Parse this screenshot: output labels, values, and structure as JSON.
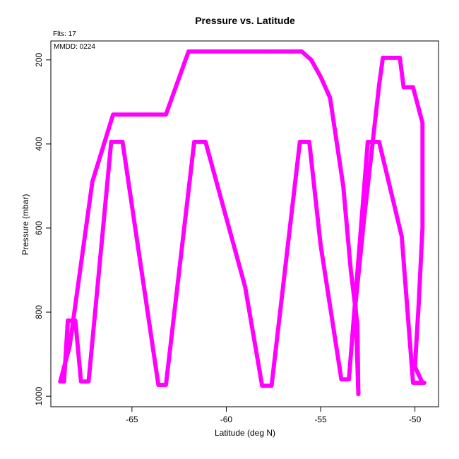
{
  "chart_data": {
    "type": "scatter",
    "title": "Pressure vs. Latitude",
    "xlabel": "Latitude (deg N)",
    "ylabel": "Pressure (mbar)",
    "annotations": {
      "flts": "Flts: 17",
      "mmdd": "MMDD: 0224"
    },
    "xlim": [
      -69.3,
      -48.75
    ],
    "ylim": [
      1025,
      155
    ],
    "y_inverted": true,
    "x_ticks": [
      -65,
      -60,
      -55,
      -50
    ],
    "x_tick_labels": [
      "-65",
      "-60",
      "-55",
      "-50"
    ],
    "y_ticks": [
      200,
      400,
      600,
      800,
      1000
    ],
    "y_tick_labels": [
      "200",
      "400",
      "600",
      "800",
      "1000"
    ],
    "grid": false,
    "marker_color": "#ff00ff",
    "series": [
      {
        "points": [
          [
            -68.8,
            965
          ],
          [
            -68.6,
            965
          ],
          [
            -68.4,
            820
          ],
          [
            -68.0,
            820
          ],
          [
            -67.7,
            965
          ],
          [
            -67.3,
            965
          ],
          [
            -66.1,
            395
          ],
          [
            -65.5,
            395
          ],
          [
            -63.6,
            973
          ],
          [
            -63.2,
            973
          ],
          [
            -61.7,
            395
          ],
          [
            -61.1,
            395
          ],
          [
            -59.0,
            740
          ],
          [
            -58.1,
            975
          ],
          [
            -57.6,
            975
          ],
          [
            -56.1,
            395
          ],
          [
            -55.6,
            395
          ],
          [
            -55.0,
            640
          ],
          [
            -53.9,
            960
          ],
          [
            -53.5,
            960
          ],
          [
            -52.5,
            395
          ],
          [
            -51.9,
            395
          ],
          [
            -50.7,
            620
          ],
          [
            -50.1,
            968
          ],
          [
            -49.5,
            968
          ]
        ]
      },
      {
        "points": [
          [
            -68.8,
            965
          ],
          [
            -68.3,
            880
          ],
          [
            -67.1,
            490
          ],
          [
            -66.0,
            330
          ],
          [
            -63.2,
            330
          ],
          [
            -62.0,
            180
          ],
          [
            -56.0,
            180
          ],
          [
            -55.5,
            200
          ],
          [
            -55.0,
            240
          ],
          [
            -54.5,
            290
          ],
          [
            -53.8,
            500
          ],
          [
            -53.4,
            700
          ],
          [
            -53.05,
            830
          ],
          [
            -53.0,
            995
          ],
          [
            -53.15,
            780
          ],
          [
            -52.7,
            580
          ],
          [
            -52.2,
            380
          ],
          [
            -51.9,
            260
          ],
          [
            -51.7,
            195
          ],
          [
            -50.8,
            195
          ],
          [
            -50.6,
            265
          ],
          [
            -50.1,
            265
          ],
          [
            -49.6,
            350
          ],
          [
            -49.6,
            600
          ],
          [
            -49.8,
            780
          ],
          [
            -50.0,
            930
          ],
          [
            -49.6,
            968
          ]
        ]
      }
    ]
  }
}
